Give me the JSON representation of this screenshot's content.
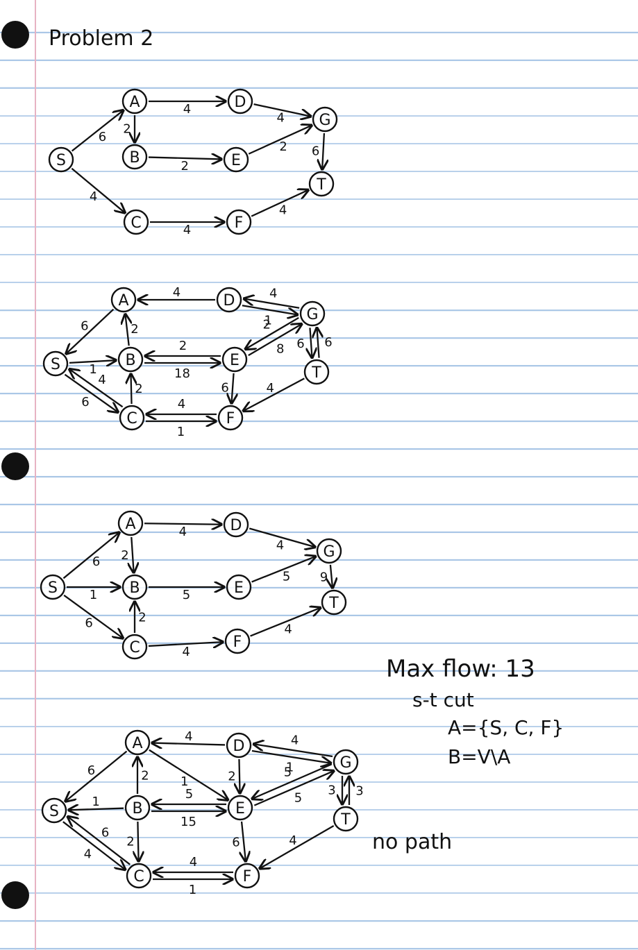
{
  "title": "Problem 2",
  "graphs": [
    {
      "id": "g1",
      "nodes": [
        "S",
        "A",
        "B",
        "C",
        "D",
        "E",
        "F",
        "G",
        "T"
      ],
      "edges": [
        {
          "from": "S",
          "to": "A",
          "label": "6"
        },
        {
          "from": "S",
          "to": "C",
          "label": "4"
        },
        {
          "from": "A",
          "to": "D",
          "label": "4"
        },
        {
          "from": "A",
          "to": "B",
          "label": "2"
        },
        {
          "from": "B",
          "to": "E",
          "label": "2"
        },
        {
          "from": "C",
          "to": "F",
          "label": "4"
        },
        {
          "from": "D",
          "to": "G",
          "label": "4"
        },
        {
          "from": "E",
          "to": "G",
          "label": "2"
        },
        {
          "from": "G",
          "to": "T",
          "label": "6"
        },
        {
          "from": "F",
          "to": "T",
          "label": "4"
        }
      ]
    },
    {
      "id": "g2",
      "nodes": [
        "S",
        "A",
        "B",
        "C",
        "D",
        "E",
        "F",
        "G",
        "T"
      ],
      "edges": [
        {
          "from": "A",
          "to": "S",
          "label": "6"
        },
        {
          "from": "D",
          "to": "A",
          "label": "4"
        },
        {
          "from": "B",
          "to": "A",
          "label": "2"
        },
        {
          "from": "S",
          "to": "B",
          "label": "1"
        },
        {
          "from": "S",
          "to": "C",
          "label": "6"
        },
        {
          "from": "C",
          "to": "S",
          "label": "4"
        },
        {
          "from": "B",
          "to": "E",
          "label": "18"
        },
        {
          "from": "E",
          "to": "B",
          "label": "2"
        },
        {
          "from": "C",
          "to": "B",
          "label": "2"
        },
        {
          "from": "C",
          "to": "F",
          "label": "1"
        },
        {
          "from": "F",
          "to": "C",
          "label": "4"
        },
        {
          "from": "G",
          "to": "D",
          "label": "4"
        },
        {
          "from": "D",
          "to": "G",
          "label": "1"
        },
        {
          "from": "G",
          "to": "E",
          "label": "2"
        },
        {
          "from": "E",
          "to": "G",
          "label": "8"
        },
        {
          "from": "E",
          "to": "F",
          "label": "6"
        },
        {
          "from": "G",
          "to": "T",
          "label": "6"
        },
        {
          "from": "T",
          "to": "G",
          "label": "6"
        },
        {
          "from": "T",
          "to": "F",
          "label": "4"
        }
      ]
    },
    {
      "id": "g3",
      "nodes": [
        "S",
        "A",
        "B",
        "C",
        "D",
        "E",
        "F",
        "G",
        "T"
      ],
      "edges": [
        {
          "from": "S",
          "to": "A",
          "label": "6"
        },
        {
          "from": "S",
          "to": "B",
          "label": "1"
        },
        {
          "from": "S",
          "to": "C",
          "label": "6"
        },
        {
          "from": "A",
          "to": "D",
          "label": "4"
        },
        {
          "from": "A",
          "to": "B",
          "label": "2"
        },
        {
          "from": "C",
          "to": "B",
          "label": "2"
        },
        {
          "from": "B",
          "to": "E",
          "label": "5"
        },
        {
          "from": "C",
          "to": "F",
          "label": "4"
        },
        {
          "from": "D",
          "to": "G",
          "label": "4"
        },
        {
          "from": "E",
          "to": "G",
          "label": "5"
        },
        {
          "from": "G",
          "to": "T",
          "label": "9"
        },
        {
          "from": "F",
          "to": "T",
          "label": "4"
        }
      ]
    },
    {
      "id": "g4",
      "nodes": [
        "S",
        "A",
        "B",
        "C",
        "D",
        "E",
        "F",
        "G",
        "T"
      ],
      "edges": [
        {
          "from": "A",
          "to": "S",
          "label": "6"
        },
        {
          "from": "B",
          "to": "S",
          "label": "1"
        },
        {
          "from": "S",
          "to": "C",
          "label": "4"
        },
        {
          "from": "C",
          "to": "S",
          "label": "6"
        },
        {
          "from": "D",
          "to": "A",
          "label": "4"
        },
        {
          "from": "A",
          "to": "E",
          "label": "1"
        },
        {
          "from": "B",
          "to": "A",
          "label": "2"
        },
        {
          "from": "B",
          "to": "C",
          "label": "2"
        },
        {
          "from": "B",
          "to": "E",
          "label": "15"
        },
        {
          "from": "E",
          "to": "B",
          "label": "5"
        },
        {
          "from": "D",
          "to": "E",
          "label": "2"
        },
        {
          "from": "G",
          "to": "D",
          "label": "4"
        },
        {
          "from": "D",
          "to": "G",
          "label": "1"
        },
        {
          "from": "E",
          "to": "G",
          "label": "5"
        },
        {
          "from": "G",
          "to": "E",
          "label": "5"
        },
        {
          "from": "E",
          "to": "F",
          "label": "6"
        },
        {
          "from": "C",
          "to": "F",
          "label": "1"
        },
        {
          "from": "F",
          "to": "C",
          "label": "4"
        },
        {
          "from": "G",
          "to": "T",
          "label": "3"
        },
        {
          "from": "T",
          "to": "G",
          "label": "3"
        },
        {
          "from": "T",
          "to": "F",
          "label": "4"
        }
      ]
    }
  ],
  "notes": {
    "max_flow": "Max flow: 13",
    "cut_heading": "s-t cut",
    "cut_a": "A={S, C, F}",
    "cut_b": "B=V\\A",
    "no_path": "no path"
  }
}
